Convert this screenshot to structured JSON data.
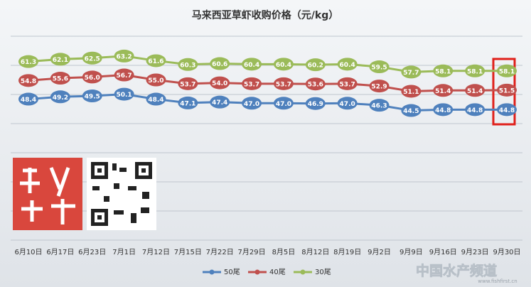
{
  "chart_data": {
    "type": "line",
    "title": "马来西亚草虾收购价格（元/kg）",
    "categories": [
      "6月10日",
      "6月17日",
      "6月23日",
      "7月1日",
      "7月12日",
      "7月15日",
      "7月22日",
      "7月29日",
      "8月5日",
      "8月12日",
      "8月19日",
      "9月2日",
      "9月9日",
      "9月16日",
      "9月23日",
      "9月30日"
    ],
    "series": [
      {
        "name": "50尾",
        "color": "#4f81bd",
        "values": [
          48.4,
          49.2,
          49.5,
          50.1,
          48.4,
          47.1,
          47.4,
          47.0,
          47.0,
          46.9,
          47.0,
          46.3,
          44.5,
          44.8,
          44.8,
          44.8
        ],
        "value_labels": [
          "48.4",
          "49.2",
          "49.5",
          "50.1",
          "48.4",
          "47.1",
          "47.4",
          "47.0",
          "47.0",
          "46.9",
          "47.0",
          "46.3",
          "44.5",
          "44.8",
          "44.8",
          "44.8"
        ]
      },
      {
        "name": "40尾",
        "color": "#c0504d",
        "values": [
          54.8,
          55.6,
          56.0,
          56.7,
          55.0,
          53.7,
          54.0,
          53.7,
          53.7,
          53.6,
          53.7,
          52.9,
          51.1,
          51.4,
          51.4,
          51.5
        ],
        "value_labels": [
          "54.8",
          "55.6",
          "56.0",
          "56.7",
          "55.0",
          "53.7",
          "54.0",
          "53.7",
          "53.7",
          "53.6",
          "53.7",
          "52.9",
          "51.1",
          "51.4",
          "51.4",
          "51.5"
        ]
      },
      {
        "name": "30尾",
        "color": "#9bbb59",
        "values": [
          61.3,
          62.1,
          62.5,
          63.2,
          61.6,
          60.3,
          60.6,
          60.4,
          60.4,
          60.2,
          60.4,
          59.5,
          57.7,
          58.1,
          58.1,
          58.1
        ],
        "value_labels": [
          "61.3",
          "62.1",
          "62.5",
          "63.2",
          "61.6",
          "60.3",
          "60.6",
          "60.4",
          "60.4",
          "60.2",
          "60.4",
          "59.5",
          "57.7",
          "58.1",
          "58.1",
          "58.1"
        ]
      }
    ],
    "ylim": [
      0,
      70
    ],
    "yticks": [
      0,
      10,
      20,
      30,
      40,
      50,
      60,
      70
    ],
    "grid": true,
    "legend": "bottom",
    "watermark": "中国水产频道",
    "watermark_url": "www.fishfirst.cn"
  }
}
